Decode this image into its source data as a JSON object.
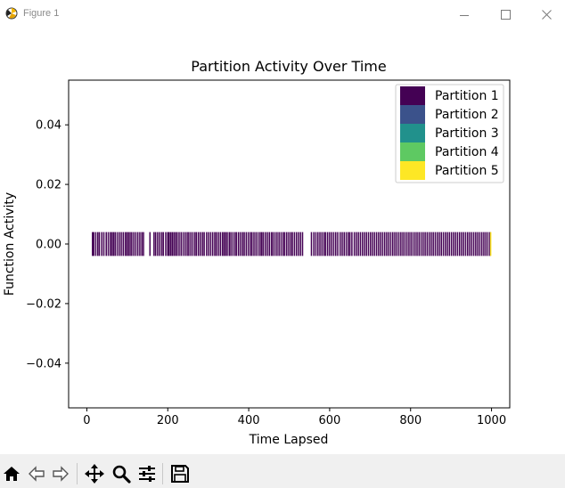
{
  "window": {
    "title": "Figure 1",
    "icon": "matplotlib-figure-icon",
    "controls": [
      "minimize-icon",
      "maximize-icon",
      "close-icon"
    ]
  },
  "toolbar": {
    "buttons": [
      "home-icon",
      "back-arrow-icon",
      "forward-arrow-icon",
      "pan-move-icon",
      "zoom-magnifier-icon",
      "configure-subplots-icon",
      "save-floppy-icon"
    ]
  },
  "chart_data": {
    "type": "event-plot",
    "title": "Partition Activity Over Time",
    "xlabel": "Time Lapsed",
    "ylabel": "Function Activity",
    "xlim": [
      -45,
      1045
    ],
    "ylim": [
      -0.055,
      0.055
    ],
    "xticks": [
      0,
      200,
      400,
      600,
      800,
      1000
    ],
    "xtick_labels": [
      "0",
      "200",
      "400",
      "600",
      "800",
      "1000"
    ],
    "yticks": [
      0.04,
      0.02,
      0.0,
      -0.02,
      -0.04
    ],
    "ytick_labels": [
      "0.04",
      "0.02",
      "0.00",
      "−0.02",
      "−0.04"
    ],
    "event_line_y_range": [
      -0.004,
      0.004
    ],
    "legend_position": "top-right",
    "grid": false,
    "series": [
      {
        "name": "Partition 1",
        "color": "#440154",
        "x": [
          14,
          17,
          22,
          27,
          31,
          37,
          42,
          48,
          53,
          58,
          62,
          66,
          70,
          75,
          80,
          85,
          90,
          95,
          99,
          103,
          107,
          111,
          116,
          121,
          126,
          131,
          136,
          140,
          156,
          166,
          170,
          175,
          180,
          185,
          189,
          195,
          200,
          203,
          207,
          211,
          215,
          219,
          223,
          228,
          233,
          238,
          243,
          248,
          252,
          257,
          262,
          267,
          271,
          276,
          281,
          286,
          290,
          296,
          301,
          306,
          311,
          316,
          320,
          325,
          330,
          335,
          339,
          343,
          347,
          352,
          356,
          361,
          366,
          370,
          375,
          380,
          385,
          389,
          394,
          399,
          404,
          408,
          413,
          418,
          423,
          428,
          432,
          436,
          441,
          446,
          451,
          456,
          460,
          465,
          470,
          475,
          480,
          485,
          489,
          494,
          499,
          504,
          508,
          513,
          518,
          523,
          528,
          533,
          555,
          561,
          566,
          571,
          576,
          581,
          586,
          590,
          595,
          600,
          605,
          610,
          615,
          620,
          626,
          631,
          636,
          641,
          646,
          650,
          655,
          661,
          666,
          671,
          676,
          681,
          686,
          691,
          696,
          701,
          706,
          711,
          716,
          721,
          726,
          731,
          736,
          741,
          746,
          751,
          756,
          761,
          766,
          771,
          776,
          781,
          786,
          791,
          796,
          801,
          806,
          811,
          816,
          821,
          826,
          831,
          836,
          841,
          846,
          851,
          856,
          861,
          866,
          871,
          876,
          881,
          886,
          891,
          896,
          901,
          906,
          911,
          916,
          921,
          926,
          931,
          936,
          941,
          946,
          951,
          956,
          961,
          966,
          971,
          976,
          981,
          986,
          991,
          996
        ]
      },
      {
        "name": "Partition 2",
        "color": "#3b528b",
        "x": []
      },
      {
        "name": "Partition 3",
        "color": "#21918c",
        "x": []
      },
      {
        "name": "Partition 4",
        "color": "#5ec962",
        "x": []
      },
      {
        "name": "Partition 5",
        "color": "#fde725",
        "x": [
          998
        ]
      }
    ]
  }
}
